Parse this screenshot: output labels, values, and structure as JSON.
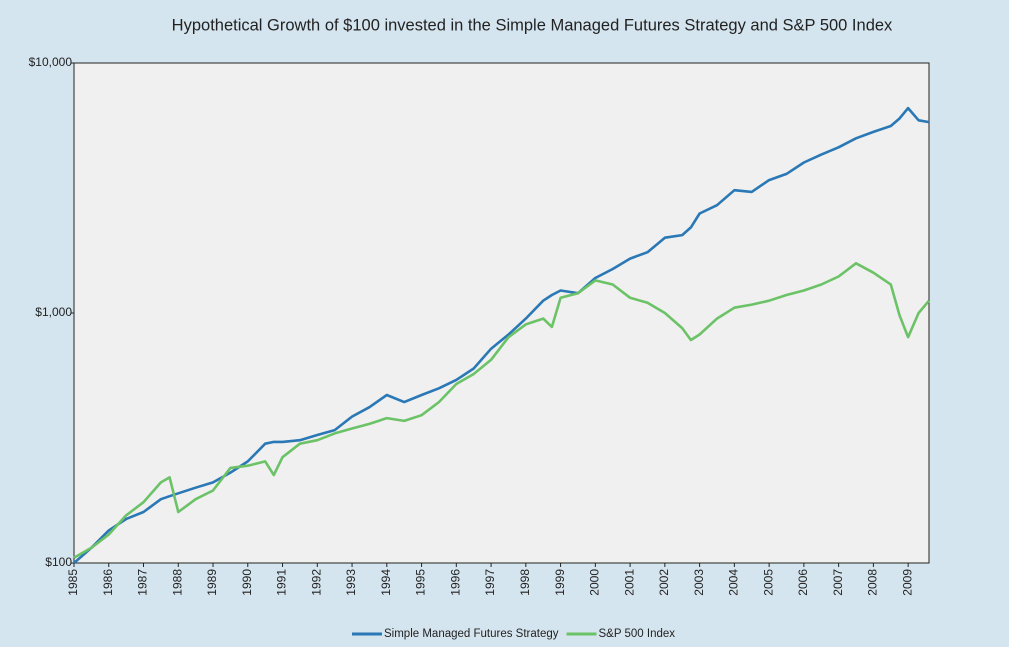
{
  "chart_data": {
    "type": "line",
    "title": "Hypothetical Growth of $100 invested in the Simple Managed Futures Strategy and S&P 500 Index",
    "x": [
      1985,
      1985.5,
      1986,
      1986.5,
      1987,
      1987.5,
      1987.75,
      1988,
      1988.5,
      1989,
      1989.5,
      1990,
      1990.5,
      1990.75,
      1991,
      1991.5,
      1992,
      1992.5,
      1993,
      1993.5,
      1994,
      1994.5,
      1995,
      1995.5,
      1996,
      1996.5,
      1997,
      1997.5,
      1998,
      1998.5,
      1998.75,
      1999,
      1999.5,
      2000,
      2000.5,
      2001,
      2001.5,
      2002,
      2002.5,
      2002.75,
      2003,
      2003.5,
      2004,
      2004.5,
      2005,
      2005.5,
      2006,
      2006.5,
      2007,
      2007.5,
      2008,
      2008.5,
      2008.75,
      2009,
      2009.3,
      2009.6
    ],
    "series": [
      {
        "name": "Simple Managed Futures Strategy",
        "color": "#2a78b5",
        "values": [
          100,
          115,
          135,
          150,
          160,
          180,
          185,
          190,
          200,
          210,
          230,
          255,
          300,
          305,
          305,
          310,
          325,
          340,
          385,
          420,
          470,
          440,
          470,
          500,
          540,
          600,
          720,
          820,
          950,
          1120,
          1180,
          1230,
          1200,
          1380,
          1500,
          1650,
          1750,
          2000,
          2050,
          2200,
          2500,
          2700,
          3100,
          3050,
          3400,
          3600,
          4000,
          4300,
          4600,
          5000,
          5300,
          5600,
          6000,
          6600,
          5900,
          5800
        ]
      },
      {
        "name": "S&P 500 Index",
        "color": "#6cc267",
        "values": [
          105,
          115,
          130,
          155,
          175,
          210,
          220,
          160,
          180,
          195,
          240,
          245,
          255,
          225,
          265,
          300,
          310,
          330,
          345,
          360,
          380,
          370,
          390,
          440,
          520,
          570,
          650,
          800,
          900,
          950,
          880,
          1150,
          1200,
          1350,
          1300,
          1150,
          1100,
          1000,
          870,
          780,
          820,
          950,
          1050,
          1080,
          1120,
          1180,
          1230,
          1300,
          1400,
          1580,
          1450,
          1300,
          980,
          800,
          1000,
          1120
        ]
      }
    ],
    "xlim": [
      1985,
      2009.6
    ],
    "xticks": [
      1985,
      1986,
      1987,
      1988,
      1989,
      1990,
      1991,
      1992,
      1993,
      1994,
      1995,
      1996,
      1997,
      1998,
      1999,
      2000,
      2001,
      2002,
      2003,
      2004,
      2005,
      2006,
      2007,
      2008,
      2009
    ],
    "ylim": [
      100,
      10000
    ],
    "yticks": [
      {
        "value": 100,
        "label": "$100"
      },
      {
        "value": 1000,
        "label": "$1,000"
      },
      {
        "value": 10000,
        "label": "$10,000"
      }
    ],
    "y_log_scale": true,
    "grid": false,
    "legend_position": "bottom"
  }
}
